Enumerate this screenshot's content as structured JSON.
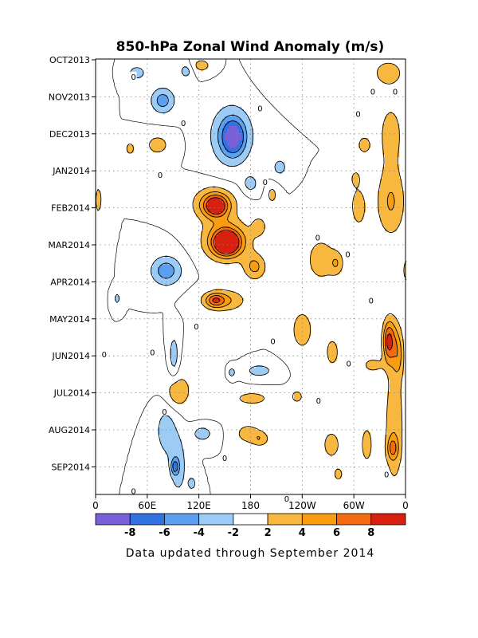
{
  "chart_data": {
    "type": "heatmap",
    "title": "850-hPa Zonal Wind Anomaly (m/s)",
    "footer": "Data updated through September 2014",
    "xlabel": "",
    "ylabel": "",
    "x_ticks": [
      "0",
      "60E",
      "120E",
      "180",
      "120W",
      "60W",
      "0"
    ],
    "x_tick_values": [
      0,
      60,
      120,
      180,
      240,
      300,
      360
    ],
    "y_ticks": [
      "OCT2013",
      "NOV2013",
      "DEC2013",
      "JAN2014",
      "FEB2014",
      "MAR2014",
      "APR2014",
      "MAY2014",
      "JUN2014",
      "JUL2014",
      "AUG2014",
      "SEP2014"
    ],
    "xlim": [
      0,
      360
    ],
    "ylim": [
      "OCT2013",
      "SEP2014"
    ],
    "grid": true,
    "colorbar": {
      "levels": [
        -8,
        -6,
        -4,
        -2,
        2,
        4,
        6,
        8
      ],
      "labels": [
        "-8",
        "-6",
        "-4",
        "-2",
        "2",
        "4",
        "6",
        "8"
      ],
      "colors": [
        "#7a60d8",
        "#2f72e0",
        "#5aa0ee",
        "#9ccbf5",
        "#ffffff",
        "#f8b840",
        "#f89c10",
        "#f46a10",
        "#d82010"
      ]
    },
    "contour_labels": [
      {
        "text": "0",
        "lon": 44,
        "month": 0.45
      },
      {
        "text": "0",
        "lon": 102,
        "month": 1.7
      },
      {
        "text": "0",
        "lon": 191,
        "month": 1.3
      },
      {
        "text": "0",
        "lon": 322,
        "month": 0.85
      },
      {
        "text": "0",
        "lon": 348,
        "month": 0.85
      },
      {
        "text": "0",
        "lon": 305,
        "month": 1.45
      },
      {
        "text": "0",
        "lon": 197,
        "month": 3.3
      },
      {
        "text": "0",
        "lon": 75,
        "month": 3.1
      },
      {
        "text": "0",
        "lon": 258,
        "month": 4.8
      },
      {
        "text": "0",
        "lon": 293,
        "month": 5.25
      },
      {
        "text": "0",
        "lon": 320,
        "month": 6.5
      },
      {
        "text": "0",
        "lon": 206,
        "month": 7.6
      },
      {
        "text": "0",
        "lon": 117,
        "month": 7.2
      },
      {
        "text": "0",
        "lon": 66,
        "month": 7.9
      },
      {
        "text": "0",
        "lon": 10,
        "month": 7.95
      },
      {
        "text": "0",
        "lon": 294,
        "month": 8.2
      },
      {
        "text": "0",
        "lon": 259,
        "month": 9.2
      },
      {
        "text": "0",
        "lon": 80,
        "month": 9.5
      },
      {
        "text": "0",
        "lon": 150,
        "month": 10.75
      },
      {
        "text": "0",
        "lon": 338,
        "month": 11.2
      },
      {
        "text": "0",
        "lon": 44,
        "month": 11.65
      },
      {
        "text": "0",
        "lon": 222,
        "month": 11.85
      }
    ],
    "features": [
      {
        "lon": 48,
        "month": 0.35,
        "rx": 12,
        "ry": 0.22,
        "value": -3,
        "angle": 0
      },
      {
        "lon": 78,
        "month": 1.1,
        "rx": 14,
        "ry": 0.35,
        "value": -5,
        "angle": -20
      },
      {
        "lon": 158,
        "month": 2.05,
        "rx": 24,
        "ry": 0.8,
        "value": -5.5,
        "angle": 15
      },
      {
        "lon": 160,
        "month": 2.1,
        "rx": 11,
        "ry": 0.4,
        "value": -6.2,
        "angle": 0
      },
      {
        "lon": 105,
        "month": 0.3,
        "rx": 8,
        "ry": 0.22,
        "value": -3,
        "angle": 0
      },
      {
        "lon": 180,
        "month": 3.35,
        "rx": 9,
        "ry": 0.25,
        "value": -3,
        "angle": 0
      },
      {
        "lon": 214,
        "month": 2.9,
        "rx": 9,
        "ry": 0.25,
        "value": -3,
        "angle": 0
      },
      {
        "lon": 123,
        "month": 0.15,
        "rx": 12,
        "ry": 0.2,
        "value": 3,
        "angle": 0
      },
      {
        "lon": 72,
        "month": 2.3,
        "rx": 15,
        "ry": 0.3,
        "value": 3,
        "angle": 0
      },
      {
        "lon": 40,
        "month": 2.4,
        "rx": 6,
        "ry": 0.2,
        "value": 3,
        "angle": 0
      },
      {
        "lon": 312,
        "month": 2.3,
        "rx": 9,
        "ry": 0.28,
        "value": 3,
        "angle": 0
      },
      {
        "lon": 302,
        "month": 3.2,
        "rx": 5,
        "ry": 0.2,
        "value": 3,
        "angle": 0
      },
      {
        "lon": 3,
        "month": 3.8,
        "rx": 4,
        "ry": 0.4,
        "value": 3,
        "angle": 0
      },
      {
        "lon": 340,
        "month": 0.35,
        "rx": 20,
        "ry": 0.4,
        "value": 3,
        "angle": 0
      },
      {
        "lon": 343,
        "month": 2.0,
        "rx": 15,
        "ry": 0.9,
        "value": 3,
        "angle": 0
      },
      {
        "lon": 343,
        "month": 3.85,
        "rx": 17,
        "ry": 0.95,
        "value": 4.2,
        "angle": 0
      },
      {
        "lon": 305,
        "month": 3.95,
        "rx": 10,
        "ry": 0.6,
        "value": 3,
        "angle": 0
      },
      {
        "lon": 138,
        "month": 3.9,
        "rx": 24,
        "ry": 0.45,
        "value": 5.8,
        "angle": -30
      },
      {
        "lon": 140,
        "month": 3.95,
        "rx": 12,
        "ry": 0.25,
        "value": 7.1,
        "angle": -30
      },
      {
        "lon": 190,
        "month": 4.5,
        "rx": 9,
        "ry": 0.28,
        "value": 3,
        "angle": 0
      },
      {
        "lon": 205,
        "month": 3.65,
        "rx": 6,
        "ry": 0.25,
        "value": 3,
        "angle": 0
      },
      {
        "lon": 152,
        "month": 4.9,
        "rx": 25,
        "ry": 0.5,
        "value": 8,
        "angle": 0
      },
      {
        "lon": 152,
        "month": 4.95,
        "rx": 12,
        "ry": 0.27,
        "value": 10,
        "angle": 0
      },
      {
        "lon": 185,
        "month": 5.6,
        "rx": 13,
        "ry": 0.35,
        "value": 4.5,
        "angle": -20
      },
      {
        "lon": 262,
        "month": 5.4,
        "rx": 20,
        "ry": 0.7,
        "value": 3,
        "angle": -45
      },
      {
        "lon": 280,
        "month": 5.5,
        "rx": 8,
        "ry": 0.3,
        "value": 3,
        "angle": -45
      },
      {
        "lon": 362,
        "month": 5.7,
        "rx": 6,
        "ry": 0.4,
        "value": 3,
        "angle": 0
      },
      {
        "lon": 82,
        "month": 5.7,
        "rx": 18,
        "ry": 0.4,
        "value": -5.2,
        "angle": -15
      },
      {
        "lon": 148,
        "month": 6.5,
        "rx": 26,
        "ry": 0.3,
        "value": 4.4,
        "angle": 0
      },
      {
        "lon": 139,
        "month": 6.5,
        "rx": 10,
        "ry": 0.17,
        "value": 5,
        "angle": 0
      },
      {
        "lon": 25,
        "month": 6.45,
        "rx": 4,
        "ry": 0.18,
        "value": -3,
        "angle": 0
      },
      {
        "lon": 240,
        "month": 7.3,
        "rx": 15,
        "ry": 0.65,
        "value": 3,
        "angle": 0
      },
      {
        "lon": 275,
        "month": 7.9,
        "rx": 9,
        "ry": 0.45,
        "value": 3,
        "angle": 0
      },
      {
        "lon": 344,
        "month": 7.6,
        "rx": 10,
        "ry": 0.7,
        "value": 4.2,
        "angle": 0
      },
      {
        "lon": 340,
        "month": 7.6,
        "rx": 6,
        "ry": 0.5,
        "value": 5,
        "angle": 0
      },
      {
        "lon": 352,
        "month": 8.0,
        "rx": 6,
        "ry": 0.6,
        "value": 3,
        "angle": 0
      },
      {
        "lon": 91,
        "month": 8.0,
        "rx": 6,
        "ry": 0.6,
        "value": -3.5,
        "angle": 0
      },
      {
        "lon": 190,
        "month": 8.4,
        "rx": 18,
        "ry": 0.2,
        "value": -3,
        "angle": 0
      },
      {
        "lon": 158,
        "month": 8.45,
        "rx": 5,
        "ry": 0.17,
        "value": -3,
        "angle": 0
      },
      {
        "lon": 94,
        "month": 9.0,
        "rx": 12,
        "ry": 0.4,
        "value": 3,
        "angle": 0
      },
      {
        "lon": 182,
        "month": 9.15,
        "rx": 22,
        "ry": 0.2,
        "value": 3,
        "angle": 0
      },
      {
        "lon": 322,
        "month": 8.25,
        "rx": 12,
        "ry": 0.2,
        "value": 3,
        "angle": 0
      },
      {
        "lon": 234,
        "month": 9.1,
        "rx": 8,
        "ry": 0.2,
        "value": 3,
        "angle": 0
      },
      {
        "lon": 347,
        "month": 9.9,
        "rx": 12,
        "ry": 1.8,
        "value": 3.5,
        "angle": 0
      },
      {
        "lon": 345,
        "month": 10.5,
        "rx": 6,
        "ry": 0.3,
        "value": 4.5,
        "angle": 0
      },
      {
        "lon": 82,
        "month": 10.0,
        "rx": 14,
        "ry": 0.8,
        "value": -3,
        "angle": 0
      },
      {
        "lon": 96,
        "month": 11.0,
        "rx": 10,
        "ry": 0.8,
        "value": -3.2,
        "angle": 0
      },
      {
        "lon": 92,
        "month": 11.0,
        "rx": 4,
        "ry": 0.2,
        "value": -5,
        "angle": 0
      },
      {
        "lon": 124,
        "month": 10.1,
        "rx": 14,
        "ry": 0.25,
        "value": -3,
        "angle": 0
      },
      {
        "lon": 177,
        "month": 10.1,
        "rx": 16,
        "ry": 0.3,
        "value": 3,
        "angle": 0
      },
      {
        "lon": 192,
        "month": 10.25,
        "rx": 10,
        "ry": 0.2,
        "value": 3,
        "angle": 0
      },
      {
        "lon": 274,
        "month": 10.4,
        "rx": 12,
        "ry": 0.45,
        "value": 3,
        "angle": 0
      },
      {
        "lon": 315,
        "month": 10.4,
        "rx": 8,
        "ry": 0.6,
        "value": 3,
        "angle": 0
      },
      {
        "lon": 282,
        "month": 11.2,
        "rx": 6,
        "ry": 0.2,
        "value": 3,
        "angle": 0
      },
      {
        "lon": 112,
        "month": 11.45,
        "rx": 5,
        "ry": 0.2,
        "value": -3,
        "angle": 0
      },
      {
        "lon": 7,
        "month": 1.5,
        "rx": 6,
        "ry": 2.2,
        "value": 1.2,
        "angle": 0
      },
      {
        "lon": 232,
        "month": 0.4,
        "rx": 30,
        "ry": 0.5,
        "value": 1.4,
        "angle": 0
      },
      {
        "lon": 110,
        "month": 8.8,
        "rx": 35,
        "ry": 0.8,
        "value": 1.3,
        "angle": 0
      },
      {
        "lon": 312,
        "month": 6.0,
        "rx": 10,
        "ry": 1.4,
        "value": 1.2,
        "angle": 0
      }
    ]
  }
}
